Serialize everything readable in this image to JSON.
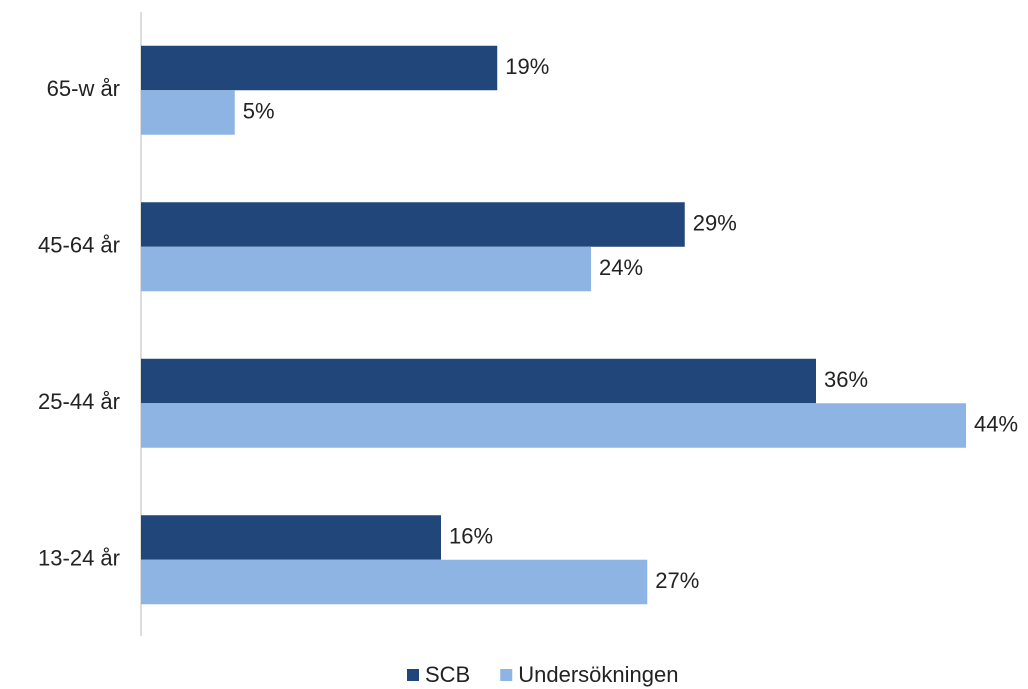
{
  "chart_data": {
    "type": "bar",
    "orientation": "horizontal",
    "categories": [
      "65-w år",
      "45-64 år",
      "25-44 år",
      "13-24 år"
    ],
    "series": [
      {
        "name": "SCB",
        "color": "#21477a",
        "values": [
          19,
          29,
          36,
          16
        ],
        "value_labels": [
          "19%",
          "29%",
          "36%",
          "16%"
        ]
      },
      {
        "name": "Undersökningen",
        "color": "#8eb4e3",
        "values": [
          5,
          24,
          44,
          27
        ],
        "value_labels": [
          "5%",
          "24%",
          "44%",
          "27%"
        ]
      }
    ],
    "legend": "bottom"
  }
}
